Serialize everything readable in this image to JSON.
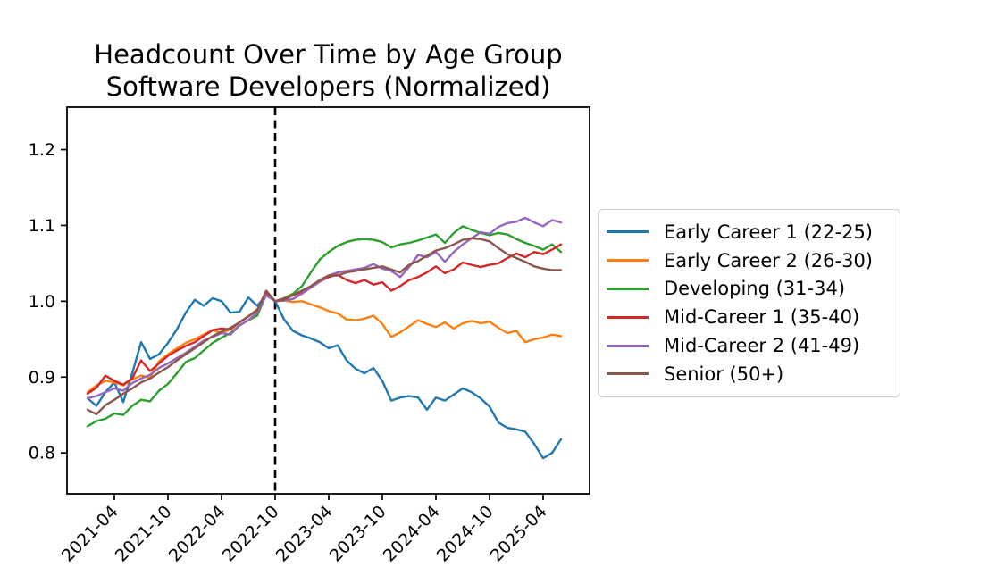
{
  "chart_data": {
    "type": "line",
    "title": "Headcount Over Time by Age Group",
    "subtitle": "Software Developers (Normalized)",
    "grid": false,
    "legend_position": "right-outside",
    "x_unit": "month",
    "x": [
      "2021-01",
      "2021-02",
      "2021-03",
      "2021-04",
      "2021-05",
      "2021-06",
      "2021-07",
      "2021-08",
      "2021-09",
      "2021-10",
      "2021-11",
      "2021-12",
      "2022-01",
      "2022-02",
      "2022-03",
      "2022-04",
      "2022-05",
      "2022-06",
      "2022-07",
      "2022-08",
      "2022-09",
      "2022-10",
      "2022-11",
      "2022-12",
      "2023-01",
      "2023-02",
      "2023-03",
      "2023-04",
      "2023-05",
      "2023-06",
      "2023-07",
      "2023-08",
      "2023-09",
      "2023-10",
      "2023-11",
      "2023-12",
      "2024-01",
      "2024-02",
      "2024-03",
      "2024-04",
      "2024-05",
      "2024-06",
      "2024-07",
      "2024-08",
      "2024-09",
      "2024-10",
      "2024-11",
      "2024-12",
      "2025-01",
      "2025-02",
      "2025-03",
      "2025-04",
      "2025-05",
      "2025-06"
    ],
    "x_tick_labels": [
      "2021-04",
      "2021-10",
      "2022-04",
      "2022-10",
      "2023-04",
      "2023-10",
      "2024-04",
      "2024-10",
      "2025-04"
    ],
    "x_tick_indices": [
      3,
      9,
      15,
      21,
      27,
      33,
      39,
      45,
      51
    ],
    "y_tick_labels": [
      "0.8",
      "0.9",
      "1.0",
      "1.1",
      "1.2"
    ],
    "y_ticks": [
      0.8,
      0.9,
      1.0,
      1.1,
      1.2
    ],
    "ylim": [
      0.746,
      1.256
    ],
    "xlim_indices": [
      -2.3,
      56.2
    ],
    "vline": {
      "x": "2022-10",
      "index": 21,
      "style": "dashed",
      "color": "#000000"
    },
    "normalization_value": 1.0,
    "series": [
      {
        "name": "Early Career 1 (22-25)",
        "color": "#1f77b4",
        "values": [
          0.872,
          0.862,
          0.88,
          0.893,
          0.867,
          0.905,
          0.946,
          0.924,
          0.93,
          0.945,
          0.963,
          0.985,
          1.002,
          0.994,
          1.004,
          1.0,
          0.985,
          0.986,
          1.005,
          0.994,
          1.008,
          1.0,
          0.976,
          0.961,
          0.955,
          0.951,
          0.946,
          0.938,
          0.942,
          0.922,
          0.911,
          0.905,
          0.912,
          0.895,
          0.869,
          0.873,
          0.875,
          0.873,
          0.857,
          0.873,
          0.869,
          0.877,
          0.885,
          0.88,
          0.872,
          0.861,
          0.84,
          0.833,
          0.831,
          0.828,
          0.812,
          0.793,
          0.8,
          0.818
        ]
      },
      {
        "name": "Early Career 2 (26-30)",
        "color": "#ff7f0e",
        "values": [
          0.88,
          0.889,
          0.895,
          0.893,
          0.889,
          0.897,
          0.902,
          0.899,
          0.921,
          0.93,
          0.938,
          0.945,
          0.95,
          0.956,
          0.962,
          0.958,
          0.963,
          0.972,
          0.98,
          0.988,
          1.011,
          1.0,
          1.001,
          0.999,
          1.0,
          0.996,
          0.992,
          0.987,
          0.984,
          0.976,
          0.975,
          0.977,
          0.981,
          0.97,
          0.953,
          0.959,
          0.967,
          0.975,
          0.97,
          0.966,
          0.972,
          0.964,
          0.971,
          0.974,
          0.971,
          0.973,
          0.965,
          0.958,
          0.961,
          0.946,
          0.95,
          0.952,
          0.956,
          0.954
        ]
      },
      {
        "name": "Developing (31-34)",
        "color": "#2ca02c",
        "values": [
          0.835,
          0.842,
          0.845,
          0.852,
          0.85,
          0.862,
          0.87,
          0.868,
          0.882,
          0.891,
          0.905,
          0.92,
          0.925,
          0.935,
          0.945,
          0.952,
          0.958,
          0.968,
          0.975,
          0.981,
          1.009,
          1.0,
          1.004,
          1.01,
          1.02,
          1.038,
          1.055,
          1.065,
          1.073,
          1.078,
          1.081,
          1.082,
          1.081,
          1.078,
          1.071,
          1.075,
          1.077,
          1.08,
          1.084,
          1.088,
          1.077,
          1.09,
          1.099,
          1.094,
          1.09,
          1.087,
          1.09,
          1.088,
          1.082,
          1.077,
          1.073,
          1.068,
          1.075,
          1.065
        ]
      },
      {
        "name": "Mid-Career 1 (35-40)",
        "color": "#d62728",
        "values": [
          0.878,
          0.886,
          0.902,
          0.895,
          0.89,
          0.898,
          0.922,
          0.908,
          0.918,
          0.928,
          0.935,
          0.941,
          0.946,
          0.954,
          0.962,
          0.964,
          0.963,
          0.972,
          0.98,
          0.989,
          1.012,
          1.0,
          1.003,
          1.008,
          1.012,
          1.018,
          1.026,
          1.032,
          1.035,
          1.028,
          1.024,
          1.028,
          1.022,
          1.025,
          1.014,
          1.02,
          1.028,
          1.032,
          1.038,
          1.046,
          1.037,
          1.042,
          1.051,
          1.048,
          1.045,
          1.048,
          1.05,
          1.057,
          1.063,
          1.058,
          1.065,
          1.062,
          1.068,
          1.075
        ]
      },
      {
        "name": "Mid-Career 2 (41-49)",
        "color": "#9467bd",
        "values": [
          0.872,
          0.875,
          0.88,
          0.885,
          0.882,
          0.892,
          0.898,
          0.903,
          0.912,
          0.918,
          0.925,
          0.932,
          0.94,
          0.948,
          0.953,
          0.958,
          0.956,
          0.968,
          0.975,
          0.985,
          1.008,
          1.0,
          1.001,
          1.003,
          1.01,
          1.018,
          1.026,
          1.034,
          1.038,
          1.04,
          1.042,
          1.044,
          1.049,
          1.043,
          1.04,
          1.032,
          1.045,
          1.061,
          1.058,
          1.065,
          1.052,
          1.065,
          1.075,
          1.083,
          1.091,
          1.089,
          1.098,
          1.103,
          1.105,
          1.11,
          1.104,
          1.099,
          1.107,
          1.104
        ]
      },
      {
        "name": "Senior (50+)",
        "color": "#8c564b",
        "values": [
          0.857,
          0.851,
          0.863,
          0.87,
          0.878,
          0.885,
          0.893,
          0.898,
          0.906,
          0.913,
          0.922,
          0.93,
          0.938,
          0.946,
          0.954,
          0.96,
          0.965,
          0.972,
          0.98,
          0.988,
          1.014,
          1.0,
          1.002,
          1.008,
          1.014,
          1.02,
          1.028,
          1.034,
          1.034,
          1.038,
          1.04,
          1.042,
          1.044,
          1.046,
          1.042,
          1.038,
          1.048,
          1.053,
          1.06,
          1.067,
          1.07,
          1.075,
          1.081,
          1.083,
          1.082,
          1.079,
          1.07,
          1.062,
          1.057,
          1.052,
          1.046,
          1.043,
          1.041,
          1.041
        ]
      }
    ]
  }
}
